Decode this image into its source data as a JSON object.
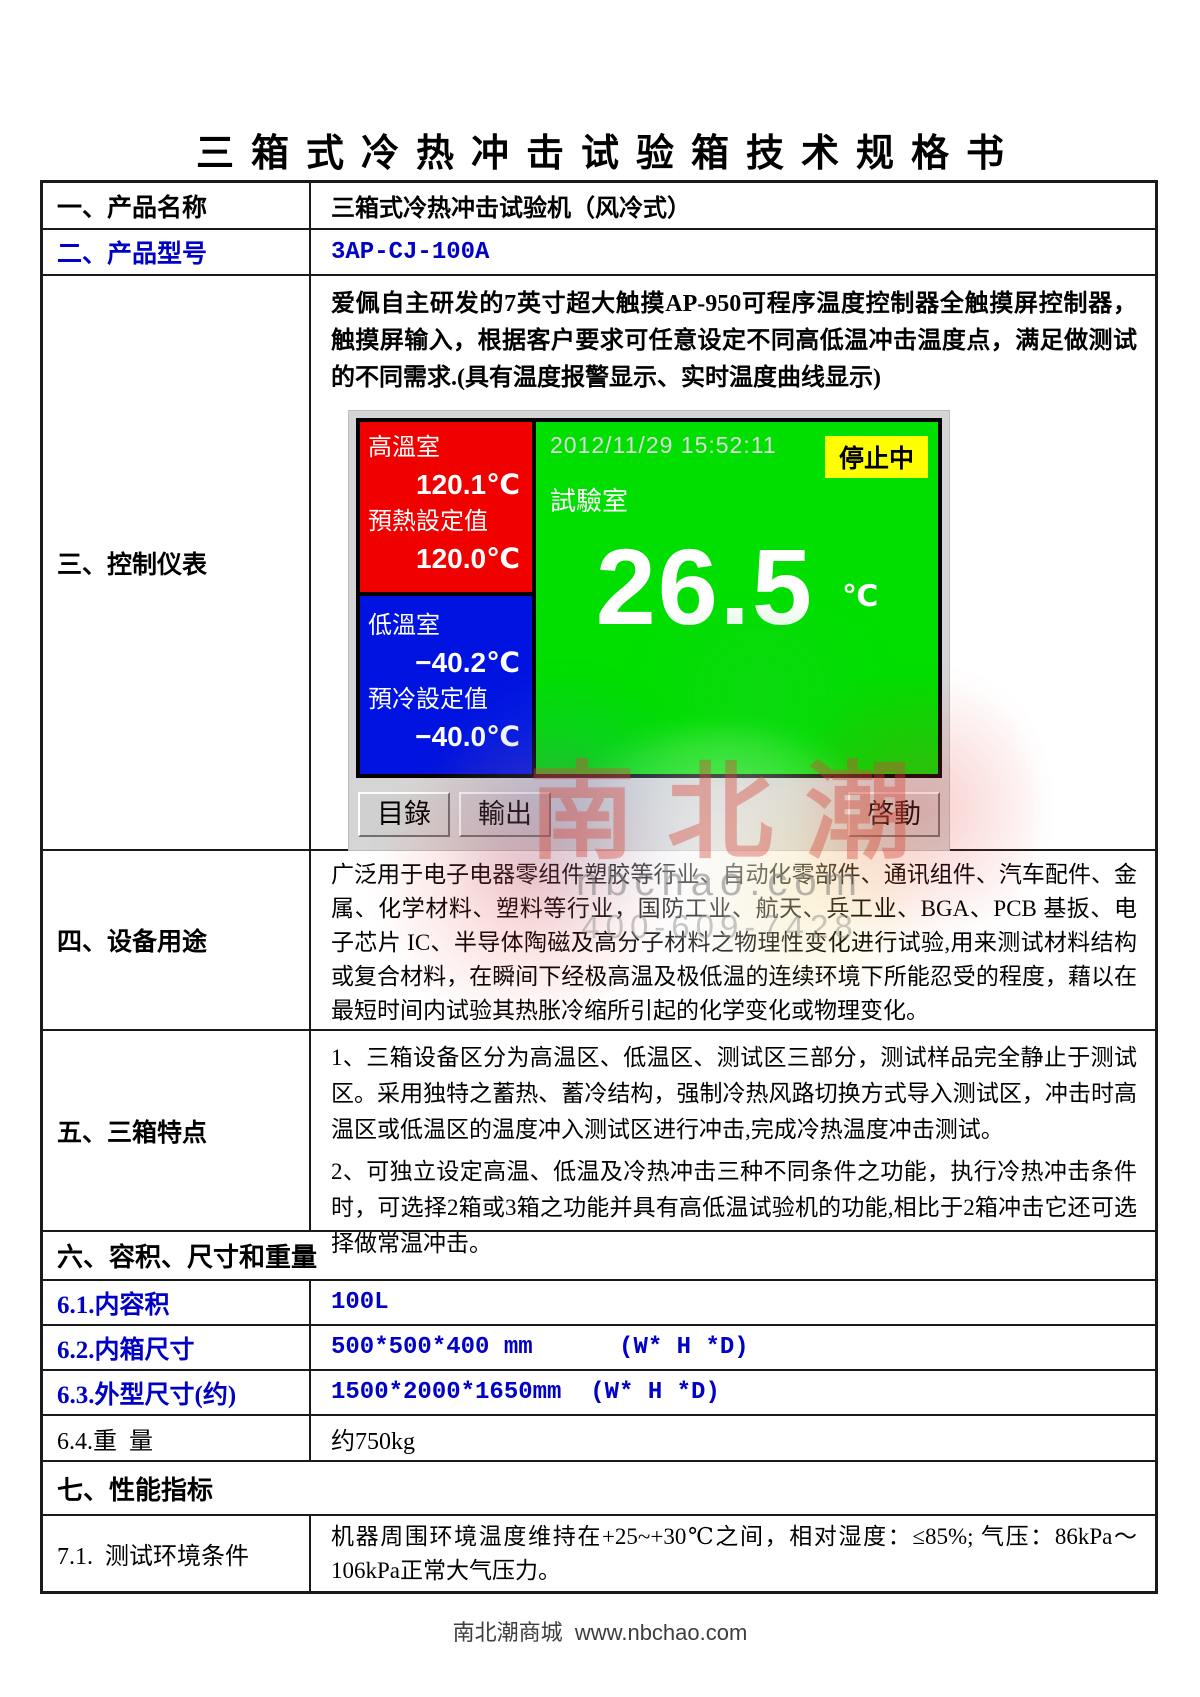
{
  "page": {
    "title": "三箱式冷热冲击试验箱技术规格书",
    "footer": "南北潮商城  www.nbchao.com"
  },
  "rows": {
    "product_name": {
      "label": "一、产品名称",
      "value": "三箱式冷热冲击试验机（风冷式）"
    },
    "product_model": {
      "label": "二、产品型号",
      "value": "3AP-CJ-100A"
    },
    "controller": {
      "label": "三、控制仪表",
      "description": "爱佩自主研发的7英寸超大触摸AP-950可程序温度控制器全触摸屏控制器，触摸屏输入，根据客户要求可任意设定不同高低温冲击温度点，满足做测试的不同需求.(具有温度报警显示、实时温度曲线显示)"
    },
    "usage": {
      "label": "四、设备用途",
      "value": "广泛用于电子电器零组件塑胶等行业、自动化零部件、通讯组件、汽车配件、金属、化学材料、塑料等行业，国防工业、航天、兵工业、BGA、PCB 基扳、电子芯片 IC、半导体陶磁及高分子材料之物理性变化进行试验,用来测试材料结构或复合材料，在瞬间下经极高温及极低温的连续环境下所能忍受的程度，藉以在最短时间内试验其热胀冷缩所引起的化学变化或物理变化。"
    },
    "features": {
      "label": "五、三箱特点",
      "items": [
        "1、三箱设备区分为高温区、低温区、测试区三部分，测试样品完全静止于测试区。采用独特之蓄热、蓄冷结构，强制冷热风路切换方式导入测试区，冲击时高温区或低温区的温度冲入测试区进行冲击,完成冷热温度冲击测试。",
        "2、可独立设定高温、低温及冷热冲击三种不同条件之功能，执行冷热冲击条件时，可选择2箱或3箱之功能并具有高低温试验机的功能,相比于2箱冲击它还可选择做常温冲击。"
      ]
    },
    "size_section": {
      "label": "六、容积、尺寸和重量"
    },
    "volume": {
      "label": "6.1.内容积",
      "value": "100L"
    },
    "inner_size": {
      "label": "6.2.内箱尺寸",
      "value": "500*500*400 mm      (W* H *D)"
    },
    "outer_size": {
      "label": "6.3.外型尺寸(约)",
      "value": "1500*2000*1650mm  (W* H *D)"
    },
    "weight": {
      "label": "6.4.重  量",
      "value": "约750kg"
    },
    "performance_section": {
      "label": "七、性能指标"
    },
    "test_env": {
      "label": "7.1.  测试环境条件",
      "value": "机器周围环境温度维持在+25~+30℃之间，相对湿度：≤85%; 气压：86kPa～106kPa正常大气压力。"
    }
  },
  "controller_display": {
    "datetime": "2012/11/29 15:52:11",
    "status": "停止中",
    "hot_room": {
      "label": "高溫室",
      "temp": "120.1℃",
      "set_label": "預熱設定值",
      "set_value": "120.0℃"
    },
    "cold_room": {
      "label": "低溫室",
      "temp": "−40.2℃",
      "set_label": "預冷設定值",
      "set_value": "−40.0℃"
    },
    "test_room": {
      "label": "試驗室",
      "temp": "26.5",
      "unit": "℃"
    },
    "buttons": {
      "menu": "目錄",
      "output": "輸出",
      "start": "啓動"
    },
    "colors": {
      "hot": "#f10000",
      "cold": "#0013e0",
      "test": "#00df00",
      "status_bg": "#ffff00",
      "accent_blue": "#0000c6"
    }
  },
  "watermark": {
    "brand": "南北潮",
    "site": "nbchao.com",
    "phone": "400-609-7428"
  }
}
